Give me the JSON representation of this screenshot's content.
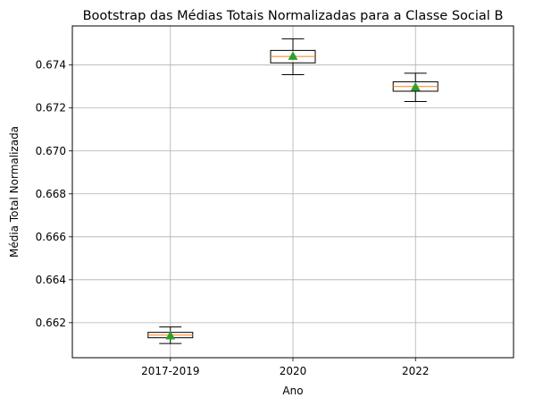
{
  "chart_data": {
    "type": "box",
    "title": "Bootstrap das Médias Totais Normalizadas para a Classe Social B",
    "xlabel": "Ano",
    "ylabel": "Média Total Normalizada",
    "categories": [
      "2017-2019",
      "2020",
      "2022"
    ],
    "boxes": [
      {
        "category": "2017-2019",
        "whisker_low": 0.66103,
        "q1": 0.6613,
        "median": 0.66142,
        "q3": 0.66155,
        "whisker_high": 0.6618,
        "mean": 0.6614
      },
      {
        "category": "2020",
        "whisker_low": 0.67355,
        "q1": 0.6741,
        "median": 0.6744,
        "q3": 0.67468,
        "whisker_high": 0.67522,
        "mean": 0.67442
      },
      {
        "category": "2022",
        "whisker_low": 0.6723,
        "q1": 0.67278,
        "median": 0.673,
        "q3": 0.67322,
        "whisker_high": 0.67362,
        "mean": 0.67298
      }
    ],
    "yticks": [
      0.662,
      0.664,
      0.666,
      0.668,
      0.67,
      0.672,
      0.674
    ],
    "ylim": [
      0.66037,
      0.67582
    ],
    "grid": true,
    "colors": {
      "box": "#000000",
      "median": "#ff7f0e",
      "mean": "#2ca02c",
      "grid": "#b0b0b0"
    }
  }
}
